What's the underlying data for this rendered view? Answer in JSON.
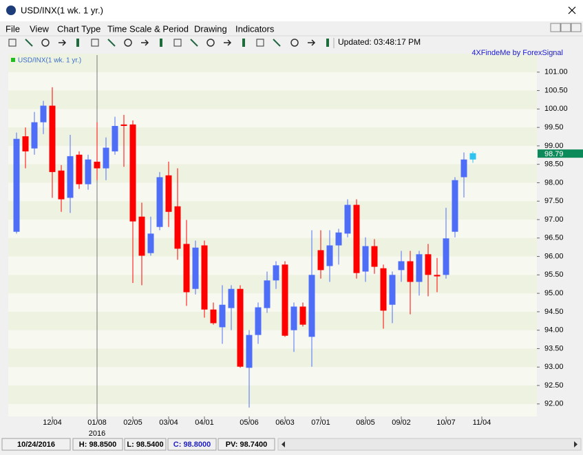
{
  "window": {
    "title": "USD/INX(1 wk.  1 yr.)"
  },
  "menu": [
    "File",
    "View",
    "Chart Type",
    "Time Scale & Period",
    "Drawing",
    "Indicators"
  ],
  "toolbar": {
    "updated": "Updated: 03:48:17 PM"
  },
  "status": [
    "10/24/2016",
    "H: 98.8500",
    "L: 98.5400",
    "C: 98.8000",
    "PV: 98.7400"
  ],
  "chart_data": {
    "type": "candlestick",
    "legend": "USD/INX(1 wk.  1 yr.)",
    "credit": "4XFindeMe by ForexSignal",
    "categories": [
      null,
      null,
      null,
      null,
      "12/04",
      null,
      null,
      null,
      null,
      "01/08",
      null,
      null,
      null,
      "02/05",
      null,
      null,
      null,
      "03/04",
      null,
      null,
      null,
      "04/01",
      null,
      null,
      null,
      null,
      "05/06",
      null,
      null,
      null,
      "06/03",
      null,
      null,
      null,
      "07/01",
      null,
      null,
      null,
      null,
      "08/05",
      null,
      null,
      null,
      "09/02",
      null,
      null,
      null,
      null,
      "10/07",
      null,
      null,
      null,
      "11/04"
    ],
    "annotations": [
      {
        "text": "2016",
        "at": "01/08"
      }
    ],
    "open": [
      96.67,
      99.26,
      98.93,
      99.64,
      100.09,
      98.33,
      97.59,
      98.76,
      97.96,
      98.57,
      98.39,
      98.85,
      99.58,
      99.58,
      97.08,
      96.09,
      96.8,
      98.2,
      97.36,
      96.34,
      95.12,
      96.3,
      94.56,
      94.08,
      94.6,
      95.12,
      92.98,
      93.87,
      94.6,
      95.35,
      95.78,
      94.0,
      94.64,
      93.82,
      96.17,
      95.74,
      96.3,
      96.62,
      97.4,
      95.59,
      96.28,
      95.68,
      94.69,
      95.63,
      95.87,
      95.31,
      96.06,
      95.5,
      95.5,
      96.67,
      98.15,
      98.63,
      null
    ],
    "high": [
      99.36,
      99.5,
      99.92,
      100.22,
      100.59,
      98.48,
      99.3,
      98.85,
      98.76,
      99.64,
      99.23,
      99.79,
      99.84,
      99.69,
      97.46,
      97.08,
      98.29,
      98.57,
      98.39,
      96.99,
      96.43,
      96.43,
      94.75,
      95.22,
      95.22,
      95.22,
      94.0,
      94.75,
      95.59,
      95.87,
      95.87,
      94.75,
      94.75,
      96.71,
      96.71,
      96.71,
      96.75,
      97.55,
      97.55,
      96.52,
      96.47,
      95.78,
      95.59,
      96.15,
      96.15,
      96.15,
      96.34,
      95.96,
      97.32,
      98.15,
      98.82,
      98.85,
      null
    ],
    "low": [
      96.62,
      98.39,
      98.76,
      99.32,
      97.59,
      97.21,
      97.18,
      97.83,
      97.81,
      98.07,
      98.07,
      98.76,
      98.43,
      95.28,
      95.22,
      96.02,
      96.71,
      96.8,
      95.91,
      94.66,
      94.97,
      94.34,
      94.15,
      93.63,
      94.0,
      92.98,
      91.9,
      93.63,
      94.47,
      95.12,
      93.82,
      93.41,
      94.1,
      93.01,
      95.4,
      95.31,
      95.78,
      96.52,
      95.4,
      95.31,
      95.53,
      94.04,
      94.19,
      95.31,
      94.43,
      94.94,
      94.92,
      95.03,
      95.4,
      96.52,
      97.6,
      98.54,
      null
    ],
    "close": [
      99.19,
      98.85,
      99.64,
      100.09,
      98.29,
      97.55,
      98.72,
      97.96,
      98.63,
      98.39,
      98.95,
      99.54,
      99.54,
      96.95,
      96.02,
      96.62,
      98.15,
      97.21,
      96.21,
      95.03,
      96.24,
      94.56,
      94.19,
      94.69,
      95.12,
      93.01,
      93.87,
      94.62,
      95.35,
      95.76,
      93.85,
      94.64,
      94.15,
      95.5,
      95.63,
      96.3,
      96.65,
      97.4,
      95.55,
      96.28,
      95.72,
      94.53,
      95.5,
      95.87,
      95.31,
      96.06,
      95.5,
      95.46,
      96.49,
      98.07,
      98.63,
      98.8,
      null
    ],
    "up_color": "#4f6ef7",
    "down_color": "#ff0000",
    "current_color": "#2ec4ef",
    "last_price": 98.79,
    "last_price_color": "#0d8a5a",
    "ylim": [
      91.66,
      101.5
    ],
    "yticks": [
      {
        "value": 92,
        "label": "92.00"
      },
      {
        "value": 92.5,
        "label": "92.50"
      },
      {
        "value": 93,
        "label": "93.00"
      },
      {
        "value": 93.5,
        "label": "93.50"
      },
      {
        "value": 94,
        "label": "94.00"
      },
      {
        "value": 94.5,
        "label": "94.50"
      },
      {
        "value": 95,
        "label": "95.00"
      },
      {
        "value": 95.5,
        "label": "95.50"
      },
      {
        "value": 96,
        "label": "96.00"
      },
      {
        "value": 96.5,
        "label": "96.50"
      },
      {
        "value": 97,
        "label": "97.00"
      },
      {
        "value": 97.5,
        "label": "97.50"
      },
      {
        "value": 98,
        "label": "98.00"
      },
      {
        "value": 98.5,
        "label": "98.50"
      },
      {
        "value": 99,
        "label": "99.00"
      },
      {
        "value": 99.5,
        "label": "99.50"
      },
      {
        "value": 100,
        "label": "100.00"
      },
      {
        "value": 100.5,
        "label": "100.50"
      },
      {
        "value": 101,
        "label": "101.00"
      }
    ]
  }
}
